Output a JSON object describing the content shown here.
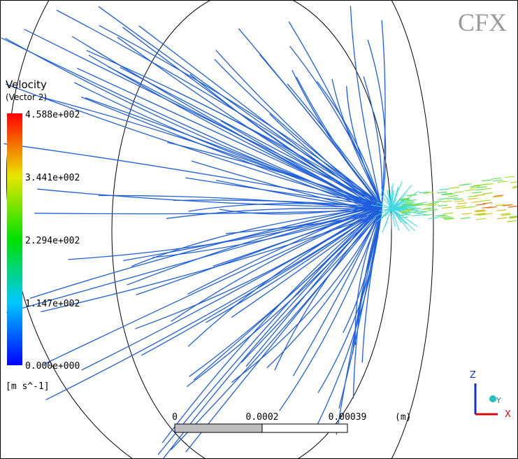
{
  "logo": "CFX",
  "legend": {
    "title": "Velocity",
    "subtitle": "(Vector 2)",
    "labels": [
      "4.588e+002",
      "3.441e+002",
      "2.294e+002",
      "1.147e+002",
      "0.000e+000"
    ],
    "units": "[m s^-1]"
  },
  "scale_bar": {
    "labels": [
      "0",
      "0.0002",
      "0.00039"
    ],
    "unit": "(m)"
  },
  "axes": {
    "z": "Z",
    "y": "Y",
    "x": "X"
  }
}
